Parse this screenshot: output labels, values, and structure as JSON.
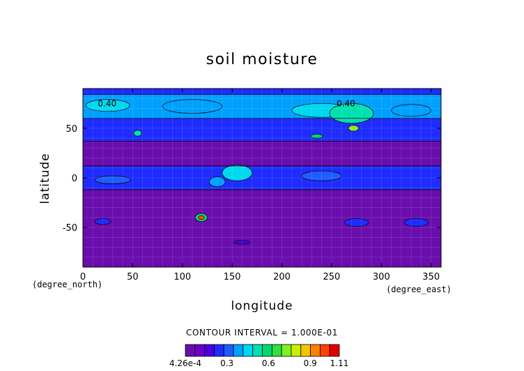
{
  "chart_data": {
    "type": "heatmap",
    "title": "soil moisture",
    "xlabel": "longitude",
    "ylabel": "latitude",
    "x_units": "(degree_east)",
    "y_units": "(degree_north)",
    "xlim": [
      0,
      360
    ],
    "ylim": [
      -90,
      90
    ],
    "x_ticks": [
      0,
      50,
      100,
      150,
      200,
      250,
      300,
      350
    ],
    "y_ticks": [
      -50,
      0,
      50
    ],
    "contour_interval_text": "CONTOUR INTERVAL = 1.000E-01",
    "contour_interval": 0.1,
    "colorbar": {
      "min": 0.000426,
      "max": 1.11,
      "labels": [
        "4.26e-4",
        "0.3",
        "0.6",
        "0.9",
        "1.11"
      ],
      "label_values": [
        0.000426,
        0.3,
        0.6,
        0.9,
        1.11
      ],
      "colors": [
        "#6a0dad",
        "#6c00c8",
        "#4b00e0",
        "#1f2cff",
        "#1f5cff",
        "#00a0ff",
        "#00d8f0",
        "#00e0b0",
        "#00d870",
        "#30e040",
        "#80f020",
        "#c8f000",
        "#f0c800",
        "#ff8000",
        "#ff4000",
        "#e00000"
      ]
    },
    "contour_labels": [
      {
        "text": "0.40",
        "lon": 15,
        "lat": 72
      },
      {
        "text": "0.40",
        "lon": 255,
        "lat": 72
      }
    ],
    "bands": [
      {
        "lat_from": 84,
        "lat_to": 90,
        "value": 0.25
      },
      {
        "lat_from": 60,
        "lat_to": 84,
        "value": 0.38
      },
      {
        "lat_from": 37,
        "lat_to": 60,
        "value": 0.27
      },
      {
        "lat_from": 12,
        "lat_to": 37,
        "value": 0.02
      },
      {
        "lat_from": -12,
        "lat_to": 12,
        "value": 0.25
      },
      {
        "lat_from": -90,
        "lat_to": -12,
        "value": 0.02
      }
    ],
    "regions": [
      {
        "cx": 25,
        "cy": 73,
        "rx": 22,
        "ry": 6,
        "value": 0.42
      },
      {
        "cx": 110,
        "cy": 72,
        "rx": 30,
        "ry": 7,
        "value": 0.36
      },
      {
        "cx": 240,
        "cy": 68,
        "rx": 30,
        "ry": 7,
        "value": 0.42
      },
      {
        "cx": 270,
        "cy": 65,
        "rx": 22,
        "ry": 10,
        "value": 0.52
      },
      {
        "cx": 272,
        "cy": 50,
        "rx": 5,
        "ry": 3,
        "value": 0.75
      },
      {
        "cx": 235,
        "cy": 42,
        "rx": 6,
        "ry": 2,
        "value": 0.6
      },
      {
        "cx": 55,
        "cy": 45,
        "rx": 4,
        "ry": 3,
        "value": 0.5
      },
      {
        "cx": 330,
        "cy": 68,
        "rx": 20,
        "ry": 6,
        "value": 0.36
      },
      {
        "cx": 155,
        "cy": 5,
        "rx": 15,
        "ry": 8,
        "value": 0.45
      },
      {
        "cx": 135,
        "cy": -4,
        "rx": 8,
        "ry": 5,
        "value": 0.38
      },
      {
        "cx": 30,
        "cy": -2,
        "rx": 18,
        "ry": 4,
        "value": 0.33
      },
      {
        "cx": 240,
        "cy": 2,
        "rx": 20,
        "ry": 5,
        "value": 0.32
      },
      {
        "cx": 119,
        "cy": -40,
        "rx": 6,
        "ry": 4,
        "value": 0.6
      },
      {
        "cx": 119,
        "cy": -40,
        "rx": 3,
        "ry": 2,
        "value": 1.0
      },
      {
        "cx": 275,
        "cy": -45,
        "rx": 12,
        "ry": 4,
        "value": 0.25
      },
      {
        "cx": 20,
        "cy": -44,
        "rx": 8,
        "ry": 3,
        "value": 0.25
      },
      {
        "cx": 335,
        "cy": -45,
        "rx": 12,
        "ry": 4,
        "value": 0.25
      },
      {
        "cx": 160,
        "cy": -65,
        "rx": 8,
        "ry": 2,
        "value": 0.2
      }
    ]
  }
}
